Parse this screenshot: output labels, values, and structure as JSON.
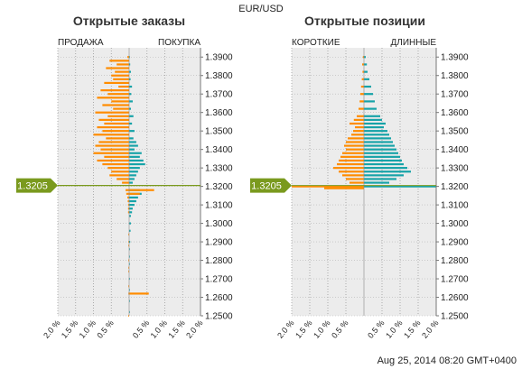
{
  "symbol": "EUR/USD",
  "current_price": "1.3205",
  "timestamp": "Aug 25, 2014 08:20 GMT+0400",
  "colors": {
    "sell": "#ff8c00",
    "buy": "#17a3a8",
    "price_line": "#7a9a1e",
    "panel_bg": "#ececec"
  },
  "chart_data": [
    {
      "type": "bar",
      "title": "Открытые заказы",
      "left_label": "ПРОДАЖА",
      "right_label": "ПОКУПКА",
      "y_ticks": [
        "1.3900",
        "1.3800",
        "1.3700",
        "1.3600",
        "1.3500",
        "1.3400",
        "1.3300",
        "1.3200",
        "1.3100",
        "1.3000",
        "1.2900",
        "1.2800",
        "1.2700",
        "1.2600",
        "1.2500"
      ],
      "x_tick_labels": [
        "2.0 %",
        "1.5 %",
        "1.0 %",
        "0.5 %",
        "0.5 %",
        "1.0 %",
        "1.5 %",
        "2.0 %"
      ],
      "ylim": [
        1.25,
        1.395
      ],
      "xlim": [
        -2.0,
        2.0
      ],
      "sell_series": {
        "name": "ПРОДАЖА",
        "levels": [
          1.39,
          1.388,
          1.386,
          1.384,
          1.382,
          1.38,
          1.378,
          1.376,
          1.374,
          1.372,
          1.37,
          1.368,
          1.366,
          1.364,
          1.362,
          1.36,
          1.358,
          1.356,
          1.354,
          1.352,
          1.35,
          1.348,
          1.346,
          1.344,
          1.342,
          1.34,
          1.338,
          1.336,
          1.334,
          1.332,
          1.33,
          1.328,
          1.326,
          1.324,
          1.322,
          1.318,
          1.316,
          1.314,
          1.312,
          1.31,
          1.308,
          1.306,
          1.294,
          1.29,
          1.288,
          1.28,
          1.276,
          1.274,
          1.266,
          1.262,
          1.25
        ],
        "values": [
          0.05,
          0.55,
          0.35,
          0.65,
          0.4,
          0.5,
          0.45,
          0.7,
          0.3,
          0.8,
          0.6,
          0.9,
          0.5,
          0.75,
          0.45,
          0.95,
          0.6,
          0.85,
          0.7,
          0.9,
          0.75,
          1.0,
          0.65,
          0.85,
          0.95,
          0.8,
          1.0,
          0.7,
          0.9,
          0.75,
          0.6,
          0.5,
          0.55,
          0.35,
          0.2,
          0.1,
          0.08,
          0.05,
          0.04,
          0.03,
          0.03,
          0.03,
          0.02,
          0.02,
          0.02,
          0.02,
          0.02,
          0.02,
          0.02,
          0.02,
          0.02
        ]
      },
      "buy_series": {
        "name": "ПОКУПКА",
        "levels": [
          1.39,
          1.386,
          1.382,
          1.378,
          1.374,
          1.37,
          1.366,
          1.362,
          1.358,
          1.354,
          1.35,
          1.346,
          1.344,
          1.342,
          1.34,
          1.338,
          1.336,
          1.334,
          1.332,
          1.33,
          1.328,
          1.326,
          1.324,
          1.322,
          1.318,
          1.316,
          1.314,
          1.312,
          1.31,
          1.308,
          1.306,
          1.304,
          1.3,
          1.296,
          1.29,
          1.286,
          1.282,
          1.278,
          1.27,
          1.264,
          1.258,
          1.252
        ],
        "values": [
          0.02,
          0.03,
          0.05,
          0.04,
          0.08,
          0.06,
          0.1,
          0.05,
          0.12,
          0.08,
          0.15,
          0.12,
          0.2,
          0.25,
          0.15,
          0.35,
          0.3,
          0.4,
          0.45,
          0.3,
          0.25,
          0.2,
          0.15,
          0.1,
          0.3,
          0.35,
          0.25,
          0.2,
          0.15,
          0.1,
          0.08,
          0.05,
          0.05,
          0.04,
          0.03,
          0.02,
          0.02,
          0.02,
          0.02,
          0.02,
          0.02,
          0.02
        ]
      },
      "extra_sell_right": {
        "levels": [
          1.318,
          1.316,
          1.262
        ],
        "values": [
          0.7,
          0.3,
          0.55
        ]
      }
    },
    {
      "type": "bar",
      "title": "Открытые позиции",
      "left_label": "КОРОТКИЕ",
      "right_label": "ДЛИННЫЕ",
      "y_ticks": [
        "1.3900",
        "1.3800",
        "1.3700",
        "1.3600",
        "1.3500",
        "1.3400",
        "1.3300",
        "1.3200",
        "1.3100",
        "1.3000",
        "1.2900",
        "1.2800",
        "1.2700",
        "1.2600",
        "1.2500"
      ],
      "x_tick_labels": [
        "2.0 %",
        "1.5 %",
        "1.0 %",
        "0.5 %",
        "0.5 %",
        "1.0 %",
        "1.5 %",
        "2.0 %"
      ],
      "ylim": [
        1.25,
        1.395
      ],
      "xlim": [
        -2.0,
        2.0
      ],
      "short_series": {
        "name": "КОРОТКИЕ",
        "levels": [
          1.39,
          1.386,
          1.382,
          1.378,
          1.374,
          1.37,
          1.366,
          1.362,
          1.358,
          1.356,
          1.354,
          1.352,
          1.35,
          1.348,
          1.346,
          1.344,
          1.342,
          1.34,
          1.338,
          1.336,
          1.334,
          1.332,
          1.33,
          1.328,
          1.326,
          1.324,
          1.322,
          1.32,
          1.319
        ],
        "values": [
          0.03,
          0.05,
          0.04,
          0.06,
          0.08,
          0.1,
          0.12,
          0.15,
          0.2,
          0.28,
          0.4,
          0.25,
          0.3,
          0.35,
          0.45,
          0.5,
          0.55,
          0.5,
          0.6,
          0.65,
          0.7,
          0.75,
          0.85,
          0.7,
          0.6,
          0.5,
          0.4,
          2.0,
          1.1
        ]
      },
      "long_series": {
        "name": "ДЛИННЫЕ",
        "levels": [
          1.39,
          1.386,
          1.382,
          1.378,
          1.374,
          1.37,
          1.366,
          1.362,
          1.358,
          1.356,
          1.354,
          1.352,
          1.35,
          1.348,
          1.346,
          1.344,
          1.342,
          1.34,
          1.338,
          1.336,
          1.334,
          1.332,
          1.33,
          1.328,
          1.326,
          1.324,
          1.322,
          1.32
        ],
        "values": [
          0.05,
          0.08,
          0.1,
          0.15,
          0.2,
          0.25,
          0.3,
          0.35,
          0.45,
          0.5,
          0.6,
          0.55,
          0.65,
          0.7,
          0.75,
          0.8,
          0.85,
          0.9,
          0.95,
          1.0,
          1.05,
          1.1,
          1.2,
          1.3,
          1.1,
          0.9,
          0.7,
          2.0
        ]
      }
    }
  ]
}
